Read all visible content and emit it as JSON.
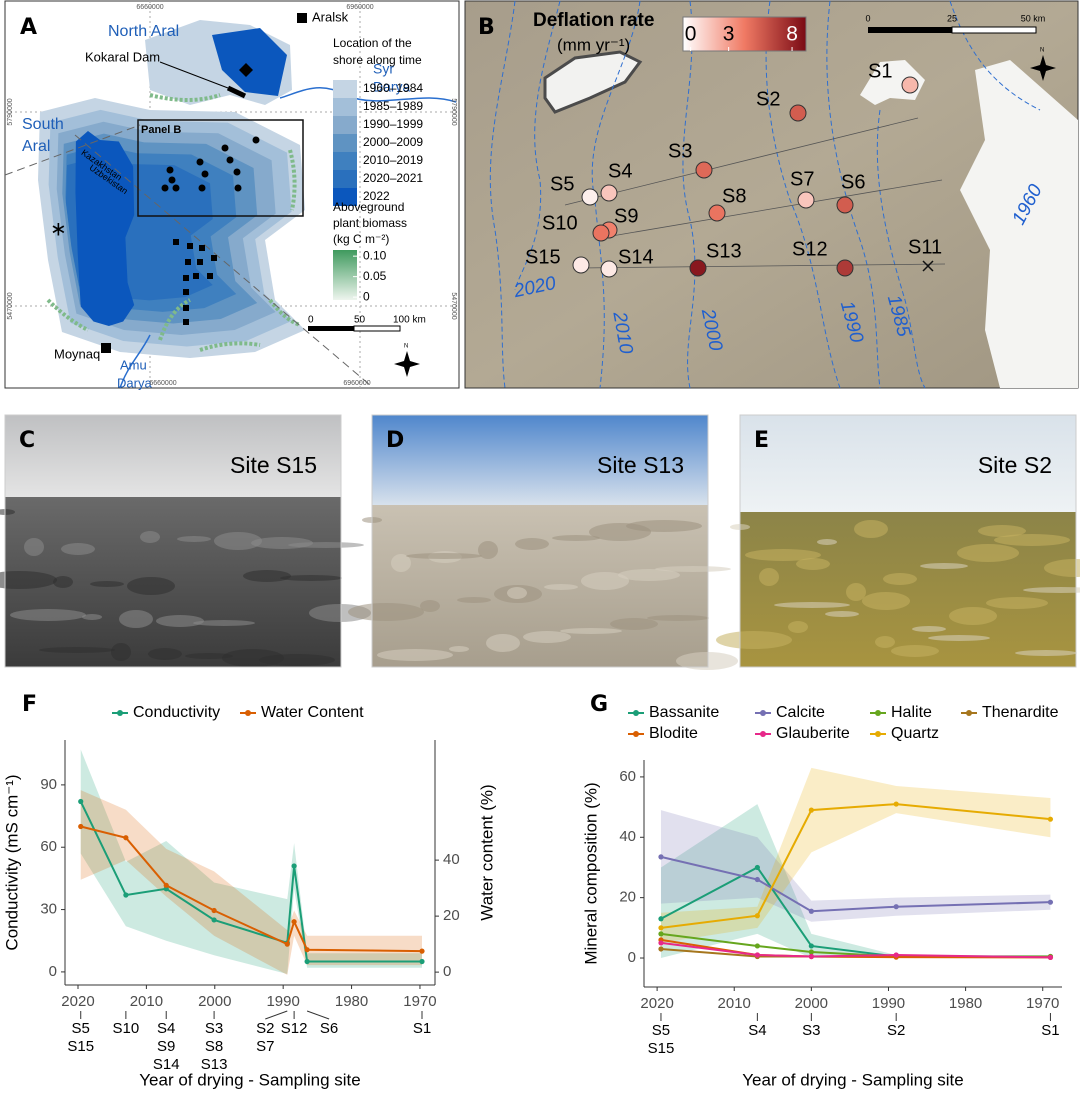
{
  "panel_a": {
    "label": "A",
    "north_aral": "North Aral",
    "aralsk": "Aralsk",
    "kokaral_dam": "Kokaral Dam",
    "syr_darya": [
      "Syr",
      "Darya"
    ],
    "south_aral": [
      "South",
      "Aral"
    ],
    "border": [
      "Kazakhstan",
      "Uzbekistan"
    ],
    "panel_b_box": "Panel B",
    "moynaq": "Moynaq",
    "amu_darya": [
      "Amu",
      "Darya"
    ],
    "grid_labels": {
      "top": [
        "6660000",
        "6960000"
      ],
      "bottom": [
        "6660000",
        "6960000"
      ],
      "left": [
        "5790000",
        "5470000"
      ],
      "right": [
        "5790000",
        "5470000"
      ]
    },
    "legend_title": [
      "Location of the",
      "shore along time"
    ],
    "shore_periods": [
      {
        "label": "1960–1984",
        "color": "#c5d5e4"
      },
      {
        "label": "1985–1989",
        "color": "#a3bfd9"
      },
      {
        "label": "1990–1999",
        "color": "#86aacc"
      },
      {
        "label": "2000–2009",
        "color": "#5f93c2"
      },
      {
        "label": "2010–2019",
        "color": "#3f80bf"
      },
      {
        "label": "2020–2021",
        "color": "#2a70bd"
      },
      {
        "label": "2022",
        "color": "#0b57bd"
      }
    ],
    "biomass_title": [
      "Aboveground",
      "plant biomass",
      "(kg C m⁻²)"
    ],
    "biomass_lim": [
      -0.007,
      0.115
    ],
    "biomass_ticks": [
      {
        "value": 0.1,
        "label": "0.10"
      },
      0.05,
      0
    ],
    "biomass_colors": [
      "#eef5ee",
      "#3f9a5e"
    ],
    "scale": [
      "0",
      "50",
      "100 km"
    ],
    "north": "N"
  },
  "panel_b": {
    "label": "B",
    "title": "Deflation rate",
    "unit": "(mm yr⁻¹)",
    "colorbar": {
      "lim": [
        -0.6,
        9.1
      ],
      "ticks": [
        0,
        3,
        8
      ],
      "colors": [
        "#ffffff",
        "#f07a64",
        "#7a0a14"
      ]
    },
    "scale": [
      "0",
      "25",
      "50 km"
    ],
    "north": "N",
    "shore_labels": [
      "2020",
      "2010",
      "2000",
      "1990",
      "1985",
      "1960"
    ],
    "sites": [
      {
        "name": "S1",
        "deflation_rate": 2
      },
      {
        "name": "S2",
        "deflation_rate": 5.5
      },
      {
        "name": "S3",
        "deflation_rate": 5
      },
      {
        "name": "S4",
        "deflation_rate": 1.5
      },
      {
        "name": "S5",
        "deflation_rate": 0
      },
      {
        "name": "S6",
        "deflation_rate": 5.5
      },
      {
        "name": "S7",
        "deflation_rate": 1.5
      },
      {
        "name": "S8",
        "deflation_rate": 4.5
      },
      {
        "name": "S9",
        "deflation_rate": 4
      },
      {
        "name": "S10",
        "deflation_rate": 4.5
      },
      {
        "name": "S11",
        "deflation_rate": null
      },
      {
        "name": "S12",
        "deflation_rate": 7
      },
      {
        "name": "S13",
        "deflation_rate": 8.5
      },
      {
        "name": "S14",
        "deflation_rate": 0.2
      },
      {
        "name": "S15",
        "deflation_rate": 0.2
      }
    ]
  },
  "photos": [
    {
      "label": "C",
      "caption": "Site S15"
    },
    {
      "label": "D",
      "caption": "Site S13"
    },
    {
      "label": "E",
      "caption": "Site S2"
    }
  ],
  "chart_data": [
    {
      "type": "line",
      "panel": "F",
      "x_label": "Year of drying - Sampling site",
      "y_label": "Conductivity (mS cm⁻¹)",
      "y2_label": "Water content (%)",
      "x": [
        2019.6,
        2013,
        2007.1,
        2000.1,
        1989.4,
        1988.4,
        1986.5,
        1969.7
      ],
      "xlim": [
        2021.9,
        1967.8
      ],
      "xticks": [
        2020,
        2010,
        2000,
        1990,
        1980,
        1970
      ],
      "ylim": [
        -6.3,
        111.6
      ],
      "yticks": [
        0,
        30,
        60,
        90
      ],
      "y2lim": [
        -4.6,
        82.9
      ],
      "y2ticks": [
        0,
        20,
        40
      ],
      "legend": "top",
      "series": [
        {
          "name": "Conductivity",
          "color": "#1b9e77",
          "values": [
            82,
            37,
            40,
            25,
            14,
            51,
            5,
            5
          ],
          "lower": [
            57,
            22,
            15,
            8,
            -1,
            40,
            2,
            2
          ],
          "upper": [
            107,
            53,
            63,
            43,
            35,
            62,
            9,
            9
          ]
        },
        {
          "name": "Water Content",
          "color": "#d95f02",
          "axis": "y2",
          "values": [
            52,
            48,
            31,
            22,
            10,
            18,
            8,
            7.5
          ],
          "lower": [
            33,
            40,
            27,
            13,
            -1,
            13,
            2.5,
            2.5
          ],
          "upper": [
            65,
            58,
            44,
            36,
            15,
            22,
            13,
            13
          ]
        }
      ],
      "site_groups": [
        [
          "S5",
          "S15"
        ],
        [
          "S10"
        ],
        [
          "S4",
          "S9",
          "S14"
        ],
        [
          "S3",
          "S8",
          "S13"
        ],
        [
          "S2",
          "S7"
        ],
        [
          "S12"
        ],
        [
          "S6"
        ],
        [
          "S1"
        ]
      ]
    },
    {
      "type": "line",
      "panel": "G",
      "x_label": "Year of drying - Sampling site",
      "y_label": "Mineral composition (%)",
      "x": [
        2019.5,
        2007,
        2000,
        1989,
        1969
      ],
      "xlim": [
        2021.7,
        1967.5
      ],
      "xticks": [
        2020,
        2010,
        2000,
        1990,
        1980,
        1970
      ],
      "ylim": [
        -9.6,
        65.6
      ],
      "yticks": [
        0,
        20,
        40,
        60
      ],
      "legend": "top",
      "series": [
        {
          "name": "Bassanite",
          "color": "#1b9e77",
          "values": [
            13,
            30,
            4,
            0.5,
            0.5
          ],
          "lower": [
            0,
            8,
            0,
            0,
            0
          ],
          "upper": [
            30,
            51,
            8,
            1,
            1
          ]
        },
        {
          "name": "Calcite",
          "color": "#7570b3",
          "values": [
            33.5,
            26,
            15.5,
            17,
            18.5
          ],
          "lower": [
            18,
            20,
            12,
            14,
            16
          ],
          "upper": [
            49,
            40,
            19,
            20,
            21
          ]
        },
        {
          "name": "Halite",
          "color": "#66a61e",
          "values": [
            8,
            4,
            2,
            0.5,
            0.5
          ]
        },
        {
          "name": "Thenardite",
          "color": "#a6761d",
          "values": [
            3,
            0.5,
            0.5,
            0.5,
            0.3
          ]
        },
        {
          "name": "Blodite",
          "color": "#d95f02",
          "values": [
            6,
            1,
            0.5,
            0.3,
            0.2
          ]
        },
        {
          "name": "Glauberite",
          "color": "#e7298a",
          "values": [
            5,
            1,
            0.5,
            1,
            0.2
          ]
        },
        {
          "name": "Quartz",
          "color": "#e6ab02",
          "values": [
            10,
            14,
            49,
            51,
            46
          ],
          "lower": [
            5,
            10,
            35,
            48,
            40
          ],
          "upper": [
            15,
            17,
            63,
            57,
            53
          ]
        }
      ],
      "site_groups": [
        [
          "S5",
          "S15"
        ],
        [
          "S4"
        ],
        [
          "S3"
        ],
        [
          "S2"
        ],
        [
          "S1"
        ]
      ]
    }
  ]
}
